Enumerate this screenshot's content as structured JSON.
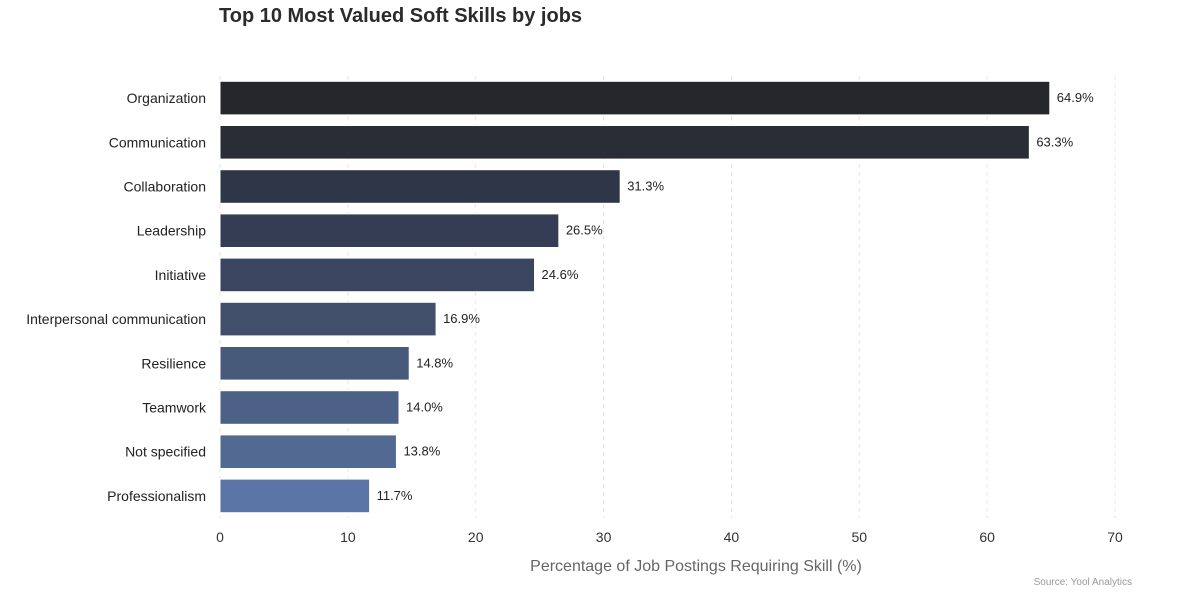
{
  "chart_data": {
    "type": "bar",
    "orientation": "horizontal",
    "title": "Top 10 Most Valued Soft Skills by jobs",
    "xlabel": "Percentage of Job Postings Requiring Skill (%)",
    "ylabel": "",
    "categories": [
      "Organization",
      "Communication",
      "Collaboration",
      "Leadership",
      "Initiative",
      "Interpersonal communication",
      "Resilience",
      "Teamwork",
      "Not specified",
      "Professionalism"
    ],
    "values": [
      64.9,
      63.3,
      31.3,
      26.5,
      24.6,
      16.9,
      14.8,
      14.0,
      13.8,
      11.7
    ],
    "value_labels": [
      "64.9%",
      "63.3%",
      "31.3%",
      "26.5%",
      "24.6%",
      "16.9%",
      "14.8%",
      "14.0%",
      "13.8%",
      "11.7%"
    ],
    "xlim": [
      0,
      70
    ],
    "xticks": [
      0,
      10,
      20,
      30,
      40,
      50,
      60,
      70
    ],
    "grid": "vertical dashed",
    "bar_colors": [
      "#25272b",
      "#292d35",
      "#2f3647",
      "#343d53",
      "#3a465f",
      "#414f6b",
      "#475a7a",
      "#4c6185",
      "#526a92",
      "#5a74a5"
    ],
    "source": "Source: Yool Analytics"
  }
}
